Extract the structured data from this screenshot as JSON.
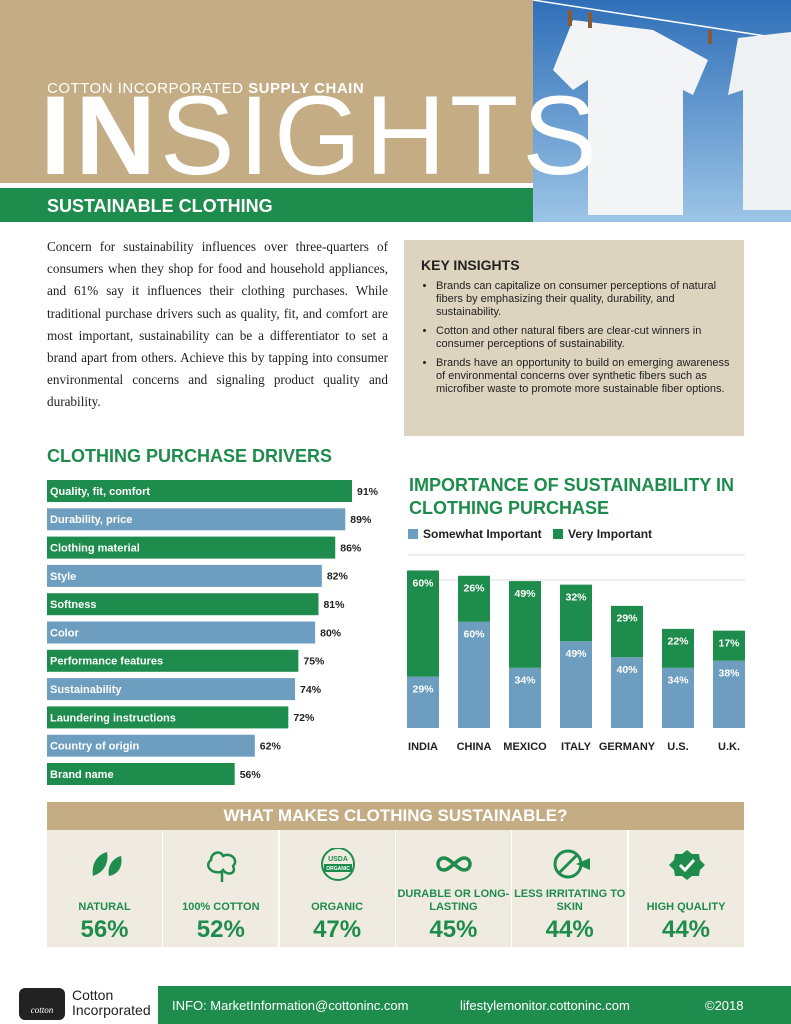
{
  "header": {
    "kicker": "COTTON INCORPORATED",
    "kicker_bold": "SUPPLY CHAIN",
    "title_bold": "IN",
    "title_light": "SIGHTS",
    "section": "SUSTAINABLE CLOTHING"
  },
  "intro": "Concern for sustainability influences over three-quarters of consumers when they shop for food and household appliances, and 61% say it influences their clothing purchases. While traditional purchase drivers such as quality, fit, and comfort are most important, sustainability can be a differentiator to set a brand apart from others. Achieve this by tapping into consumer environmental concerns and signaling product quality and durability.",
  "key_insights": {
    "title": "KEY INSIGHTS",
    "items": [
      "Brands can capitalize on consumer perceptions of natural fibers by emphasizing their quality, durability, and sustainability.",
      "Cotton and other natural fibers are clear-cut winners in consumer perceptions of sustainability.",
      "Brands have an opportunity to build on emerging awareness of environmental concerns over synthetic fibers such as microfiber waste to promote more sustainable fiber options."
    ]
  },
  "drivers_chart": {
    "type": "bar",
    "orientation": "horizontal",
    "title": "CLOTHING PURCHASE DRIVERS",
    "categories": [
      "Quality, fit, comfort",
      "Durability, price",
      "Clothing material",
      "Style",
      "Softness",
      "Color",
      "Performance features",
      "Sustainability",
      "Laundering instructions",
      "Country of origin",
      "Brand name"
    ],
    "values": [
      91,
      89,
      86,
      82,
      81,
      80,
      75,
      74,
      72,
      62,
      56
    ],
    "value_labels": [
      "91%",
      "89%",
      "86%",
      "82%",
      "81%",
      "80%",
      "75%",
      "74%",
      "72%",
      "62%",
      "56%"
    ],
    "colors": [
      "#1e8c4c",
      "#6d9ebf"
    ]
  },
  "importance_chart": {
    "type": "stacked_bar",
    "title": "IMPORTANCE OF SUSTAINABILITY IN CLOTHING PURCHASE",
    "categories": [
      "INDIA",
      "CHINA",
      "MEXICO",
      "ITALY",
      "GERMANY",
      "U.S.",
      "U.K."
    ],
    "series": [
      {
        "name": "Somewhat Important",
        "color": "#6d9ebf",
        "values": [
          29,
          60,
          34,
          49,
          40,
          34,
          38
        ],
        "value_labels": [
          "29%",
          "60%",
          "34%",
          "49%",
          "40%",
          "34%",
          "38%"
        ]
      },
      {
        "name": "Very Important",
        "color": "#1e8c4c",
        "values": [
          60,
          26,
          49,
          32,
          29,
          22,
          17
        ],
        "value_labels": [
          "60%",
          "26%",
          "49%",
          "32%",
          "29%",
          "22%",
          "17%"
        ]
      }
    ]
  },
  "sustainable": {
    "title": "WHAT MAKES CLOTHING SUSTAINABLE?",
    "items": [
      {
        "label": "NATURAL",
        "value": "56%"
      },
      {
        "label": "100% COTTON",
        "value": "52%"
      },
      {
        "label": "ORGANIC",
        "value": "47%",
        "badge": [
          "USDA",
          "ORGANIC"
        ]
      },
      {
        "label": "DURABLE OR LONG-LASTING",
        "value": "45%"
      },
      {
        "label": "LESS IRRITATING TO SKIN",
        "value": "44%"
      },
      {
        "label": "HIGH QUALITY",
        "value": "44%"
      }
    ]
  },
  "footer": {
    "seal": "cotton",
    "logo": [
      "Cotton",
      "Incorporated"
    ],
    "info": "INFO:  MarketInformation@cottoninc.com",
    "site": "lifestylemonitor.cottoninc.com",
    "copyright": "©2018"
  }
}
